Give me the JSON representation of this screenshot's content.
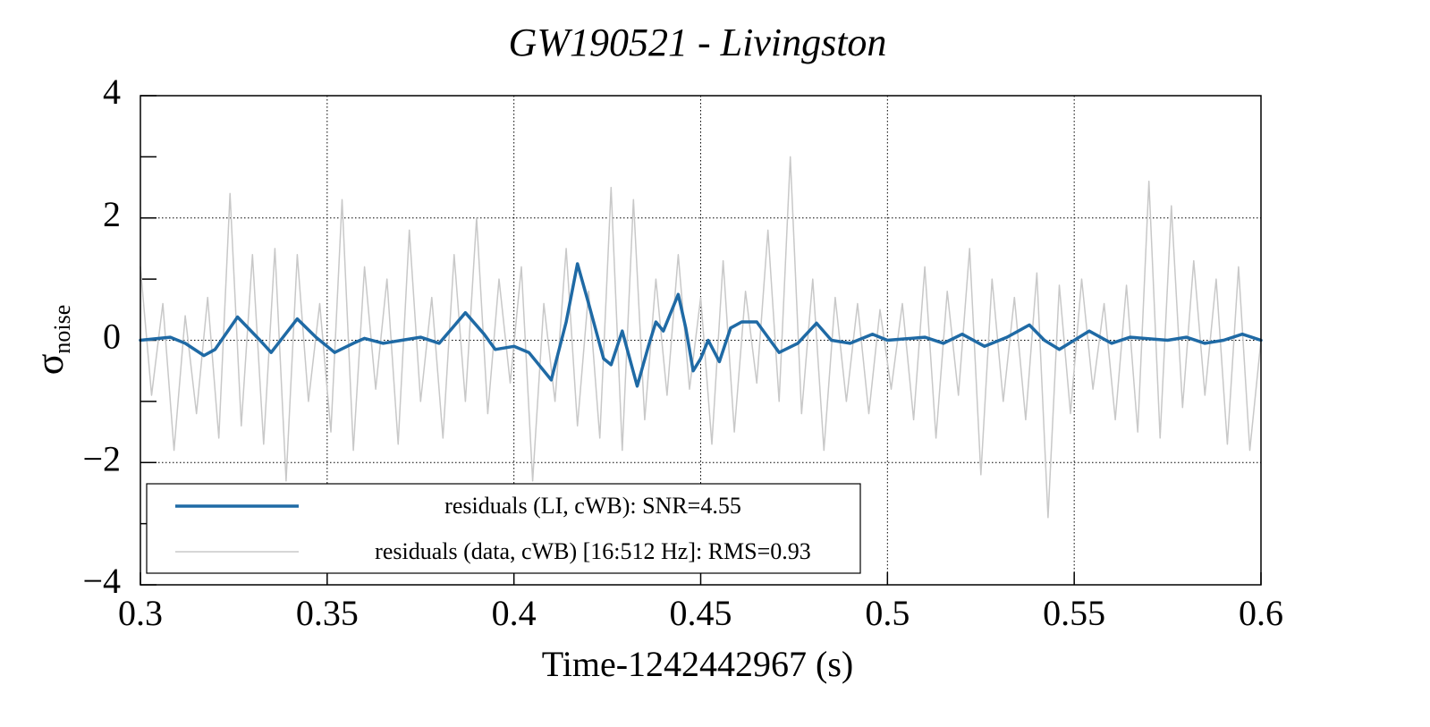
{
  "chart_data": {
    "type": "line",
    "title": "GW190521 - Livingston",
    "x_label": "Time-1242442967 (s)",
    "y_label": "σ",
    "y_label_subscript": "noise",
    "xlim": [
      0.3,
      0.6
    ],
    "xticks": [
      0.3,
      0.35,
      0.4,
      0.45,
      0.5,
      0.55,
      0.6
    ],
    "ylim": [
      -4,
      4
    ],
    "yticks": [
      {
        "value": -4,
        "label": "−4"
      },
      {
        "value": -2,
        "label": "−2"
      },
      0,
      2,
      4
    ],
    "yminor_ticks": [
      -3,
      -1,
      1,
      3
    ],
    "grid": true,
    "legend": "lower left",
    "series": [
      {
        "name": "residuals (data, cWB) [16:512 Hz]: RMS=0.93",
        "color": "#c8c8c8",
        "width": 1.5,
        "x": [
          0.3,
          0.303,
          0.306,
          0.309,
          0.312,
          0.315,
          0.318,
          0.321,
          0.324,
          0.327,
          0.33,
          0.333,
          0.336,
          0.339,
          0.342,
          0.345,
          0.348,
          0.351,
          0.354,
          0.357,
          0.36,
          0.363,
          0.366,
          0.369,
          0.372,
          0.375,
          0.378,
          0.381,
          0.384,
          0.387,
          0.39,
          0.393,
          0.396,
          0.399,
          0.402,
          0.405,
          0.408,
          0.411,
          0.414,
          0.417,
          0.42,
          0.423,
          0.426,
          0.429,
          0.432,
          0.435,
          0.438,
          0.441,
          0.444,
          0.447,
          0.45,
          0.453,
          0.456,
          0.459,
          0.462,
          0.465,
          0.468,
          0.471,
          0.474,
          0.477,
          0.48,
          0.483,
          0.486,
          0.489,
          0.492,
          0.495,
          0.498,
          0.501,
          0.504,
          0.507,
          0.51,
          0.513,
          0.516,
          0.519,
          0.522,
          0.525,
          0.528,
          0.531,
          0.534,
          0.537,
          0.54,
          0.543,
          0.546,
          0.549,
          0.552,
          0.555,
          0.558,
          0.561,
          0.564,
          0.567,
          0.57,
          0.573,
          0.576,
          0.579,
          0.582,
          0.585,
          0.588,
          0.591,
          0.594,
          0.597,
          0.6
        ],
        "values": [
          1.2,
          -0.9,
          0.6,
          -1.8,
          0.4,
          -1.2,
          0.7,
          -1.6,
          2.4,
          -1.4,
          1.4,
          -1.7,
          1.5,
          -2.3,
          1.4,
          -1.0,
          0.6,
          -1.5,
          2.3,
          -1.8,
          1.2,
          -0.8,
          1.0,
          -1.7,
          1.8,
          -1.0,
          0.7,
          -1.6,
          1.4,
          -1.0,
          2.0,
          -1.2,
          1.0,
          -0.7,
          1.2,
          -2.3,
          0.6,
          -1.0,
          1.5,
          -1.4,
          0.8,
          -1.6,
          2.5,
          -1.8,
          2.3,
          -1.3,
          1.0,
          -0.9,
          1.4,
          -0.8,
          0.7,
          -1.7,
          1.3,
          -1.5,
          0.8,
          -0.7,
          1.8,
          -1.0,
          3.0,
          -1.2,
          1.0,
          -1.8,
          0.7,
          -1.0,
          0.6,
          -1.2,
          0.5,
          -0.8,
          0.6,
          -1.3,
          1.2,
          -1.6,
          0.8,
          -0.9,
          1.5,
          -2.2,
          1.0,
          -1.0,
          0.7,
          -1.3,
          1.1,
          -2.9,
          0.9,
          -1.2,
          1.0,
          -0.8,
          0.6,
          -1.3,
          0.9,
          -1.5,
          2.6,
          -1.6,
          2.2,
          -1.1,
          1.3,
          -0.9,
          1.0,
          -1.7,
          1.2,
          -1.8,
          0.0
        ]
      },
      {
        "name": "residuals (LI, cWB): SNR=4.55",
        "color": "#1f6aa5",
        "width": 3.5,
        "x": [
          0.3,
          0.308,
          0.312,
          0.317,
          0.32,
          0.326,
          0.332,
          0.335,
          0.342,
          0.347,
          0.352,
          0.357,
          0.36,
          0.365,
          0.37,
          0.375,
          0.38,
          0.387,
          0.392,
          0.395,
          0.4,
          0.404,
          0.41,
          0.414,
          0.417,
          0.42,
          0.424,
          0.426,
          0.429,
          0.433,
          0.436,
          0.438,
          0.44,
          0.444,
          0.446,
          0.448,
          0.45,
          0.452,
          0.455,
          0.458,
          0.461,
          0.465,
          0.468,
          0.471,
          0.476,
          0.481,
          0.485,
          0.49,
          0.496,
          0.5,
          0.51,
          0.515,
          0.52,
          0.526,
          0.532,
          0.538,
          0.542,
          0.546,
          0.55,
          0.554,
          0.56,
          0.565,
          0.575,
          0.58,
          0.585,
          0.59,
          0.595,
          0.6
        ],
        "values": [
          0,
          0.05,
          -0.05,
          -0.25,
          -0.15,
          0.38,
          0.0,
          -0.2,
          0.35,
          0.05,
          -0.2,
          -0.05,
          0.03,
          -0.05,
          0.0,
          0.05,
          -0.05,
          0.45,
          0.1,
          -0.15,
          -0.1,
          -0.2,
          -0.65,
          0.3,
          1.25,
          0.6,
          -0.3,
          -0.4,
          0.15,
          -0.75,
          -0.1,
          0.3,
          0.15,
          0.75,
          0.2,
          -0.5,
          -0.3,
          0.0,
          -0.35,
          0.2,
          0.3,
          0.3,
          0.05,
          -0.2,
          -0.05,
          0.28,
          0.0,
          -0.05,
          0.1,
          0.0,
          0.05,
          -0.05,
          0.1,
          -0.1,
          0.05,
          0.25,
          0.0,
          -0.15,
          0.0,
          0.15,
          -0.05,
          0.05,
          0.0,
          0.05,
          -0.05,
          0.0,
          0.1,
          0.0
        ]
      }
    ]
  }
}
